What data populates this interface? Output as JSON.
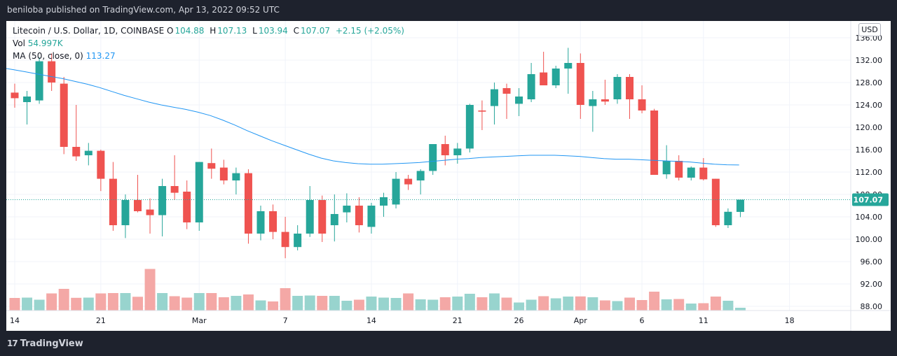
{
  "header": {
    "published": "beniloba published on TradingView.com, Apr 13, 2022 09:52 UTC"
  },
  "legend": {
    "symbol": "Litecoin / U.S. Dollar, 1D, COINBASE",
    "o_label": "O",
    "o_value": "104.88",
    "h_label": "H",
    "h_value": "107.13",
    "l_label": "L",
    "l_value": "103.94",
    "c_label": "C",
    "c_value": "107.07",
    "change": "+2.15 (+2.05%)",
    "vol_label": "Vol",
    "vol_value": "54.997K",
    "ma_label": "MA (50, close, 0)",
    "ma_value": "113.27"
  },
  "currency": "USD",
  "footer": {
    "brand": "TradingView"
  },
  "colors": {
    "up": "#26a69a",
    "down": "#ef5350",
    "vol_up": "#98d4ce",
    "vol_down": "#f4a8a6",
    "ma": "#2196f3",
    "background": "#ffffff",
    "frame": "#1e222d"
  },
  "chart_data": {
    "type": "candlestick",
    "title": "Litecoin / U.S. Dollar, 1D, COINBASE",
    "last_price": 107.07,
    "ylim": [
      86.5,
      137.5
    ],
    "y_ticks": [
      "88.00",
      "92.00",
      "96.00",
      "100.00",
      "104.00",
      "108.00",
      "112.00",
      "116.00",
      "120.00",
      "124.00",
      "128.00",
      "132.00",
      "136.00"
    ],
    "x_ticks": [
      {
        "label": "14",
        "index": 0
      },
      {
        "label": "21",
        "index": 7
      },
      {
        "label": "Mar",
        "index": 15
      },
      {
        "label": "7",
        "index": 22
      },
      {
        "label": "14",
        "index": 29
      },
      {
        "label": "21",
        "index": 36
      },
      {
        "label": "26",
        "index": 41
      },
      {
        "label": "Apr",
        "index": 46
      },
      {
        "label": "6",
        "index": 51
      },
      {
        "label": "11",
        "index": 56
      },
      {
        "label": "18",
        "index": 63
      }
    ],
    "candles": [
      {
        "o": 126.2,
        "h": 127.8,
        "l": 123.5,
        "c": 125.2
      },
      {
        "o": 124.5,
        "h": 126.5,
        "l": 120.5,
        "c": 125.5
      },
      {
        "o": 124.8,
        "h": 132.5,
        "l": 124.2,
        "c": 131.8
      },
      {
        "o": 131.8,
        "h": 133.2,
        "l": 126.5,
        "c": 128.0
      },
      {
        "o": 127.8,
        "h": 129.0,
        "l": 115.2,
        "c": 116.5
      },
      {
        "o": 116.5,
        "h": 124.0,
        "l": 114.0,
        "c": 114.8
      },
      {
        "o": 115.0,
        "h": 117.2,
        "l": 113.2,
        "c": 115.8
      },
      {
        "o": 115.8,
        "h": 116.0,
        "l": 108.6,
        "c": 110.8
      },
      {
        "o": 110.8,
        "h": 113.8,
        "l": 101.5,
        "c": 102.5
      },
      {
        "o": 102.5,
        "h": 108.0,
        "l": 100.2,
        "c": 107.0
      },
      {
        "o": 107.0,
        "h": 111.5,
        "l": 104.8,
        "c": 105.0
      },
      {
        "o": 105.3,
        "h": 107.3,
        "l": 101.0,
        "c": 104.3
      },
      {
        "o": 104.3,
        "h": 110.8,
        "l": 100.5,
        "c": 109.5
      },
      {
        "o": 109.5,
        "h": 115.0,
        "l": 107.0,
        "c": 108.3
      },
      {
        "o": 108.5,
        "h": 110.5,
        "l": 101.8,
        "c": 103.0
      },
      {
        "o": 103.0,
        "h": 113.8,
        "l": 101.5,
        "c": 113.8
      },
      {
        "o": 113.6,
        "h": 116.2,
        "l": 110.8,
        "c": 112.6
      },
      {
        "o": 112.8,
        "h": 114.2,
        "l": 109.8,
        "c": 110.5
      },
      {
        "o": 110.5,
        "h": 112.8,
        "l": 108.0,
        "c": 111.8
      },
      {
        "o": 111.8,
        "h": 112.5,
        "l": 99.2,
        "c": 101.0
      },
      {
        "o": 101.0,
        "h": 106.0,
        "l": 99.8,
        "c": 105.0
      },
      {
        "o": 105.0,
        "h": 106.2,
        "l": 100.0,
        "c": 101.3
      },
      {
        "o": 101.3,
        "h": 104.0,
        "l": 96.6,
        "c": 98.6
      },
      {
        "o": 98.6,
        "h": 102.5,
        "l": 98.0,
        "c": 101.0
      },
      {
        "o": 101.0,
        "h": 109.5,
        "l": 100.4,
        "c": 107.0
      },
      {
        "o": 107.0,
        "h": 107.8,
        "l": 99.5,
        "c": 101.0
      },
      {
        "o": 102.5,
        "h": 108.0,
        "l": 99.6,
        "c": 104.5
      },
      {
        "o": 104.8,
        "h": 108.2,
        "l": 103.0,
        "c": 106.0
      },
      {
        "o": 106.0,
        "h": 107.5,
        "l": 101.2,
        "c": 102.5
      },
      {
        "o": 102.2,
        "h": 106.5,
        "l": 101.0,
        "c": 106.0
      },
      {
        "o": 106.0,
        "h": 108.3,
        "l": 104.0,
        "c": 107.5
      },
      {
        "o": 106.2,
        "h": 112.0,
        "l": 105.5,
        "c": 110.8
      },
      {
        "o": 110.8,
        "h": 111.5,
        "l": 108.8,
        "c": 109.8
      },
      {
        "o": 110.5,
        "h": 112.5,
        "l": 108.0,
        "c": 112.2
      },
      {
        "o": 112.2,
        "h": 117.0,
        "l": 111.5,
        "c": 117.0
      },
      {
        "o": 117.0,
        "h": 118.5,
        "l": 113.2,
        "c": 115.0
      },
      {
        "o": 115.0,
        "h": 117.2,
        "l": 113.5,
        "c": 116.2
      },
      {
        "o": 116.2,
        "h": 124.2,
        "l": 115.5,
        "c": 124.0
      },
      {
        "o": 123.0,
        "h": 124.8,
        "l": 119.5,
        "c": 122.8
      },
      {
        "o": 123.8,
        "h": 128.0,
        "l": 120.5,
        "c": 126.8
      },
      {
        "o": 127.0,
        "h": 127.8,
        "l": 121.5,
        "c": 126.0
      },
      {
        "o": 124.2,
        "h": 127.0,
        "l": 122.0,
        "c": 125.5
      },
      {
        "o": 125.0,
        "h": 131.5,
        "l": 124.5,
        "c": 129.5
      },
      {
        "o": 129.8,
        "h": 133.5,
        "l": 127.5,
        "c": 127.5
      },
      {
        "o": 127.5,
        "h": 131.0,
        "l": 127.0,
        "c": 130.5
      },
      {
        "o": 130.5,
        "h": 134.2,
        "l": 126.0,
        "c": 131.5
      },
      {
        "o": 131.5,
        "h": 133.2,
        "l": 121.5,
        "c": 124.0
      },
      {
        "o": 123.8,
        "h": 126.5,
        "l": 119.2,
        "c": 125.0
      },
      {
        "o": 125.0,
        "h": 128.5,
        "l": 124.0,
        "c": 124.6
      },
      {
        "o": 125.0,
        "h": 129.5,
        "l": 124.2,
        "c": 129.0
      },
      {
        "o": 129.0,
        "h": 129.5,
        "l": 121.5,
        "c": 125.0
      },
      {
        "o": 125.0,
        "h": 127.5,
        "l": 122.5,
        "c": 123.0
      },
      {
        "o": 123.0,
        "h": 123.3,
        "l": 111.5,
        "c": 111.5
      },
      {
        "o": 111.6,
        "h": 116.8,
        "l": 110.8,
        "c": 114.0
      },
      {
        "o": 114.0,
        "h": 115.0,
        "l": 110.5,
        "c": 111.0
      },
      {
        "o": 111.0,
        "h": 113.0,
        "l": 110.5,
        "c": 112.8
      },
      {
        "o": 112.8,
        "h": 114.5,
        "l": 110.5,
        "c": 110.7
      },
      {
        "o": 110.8,
        "h": 110.8,
        "l": 102.2,
        "c": 102.5
      },
      {
        "o": 102.5,
        "h": 105.5,
        "l": 102.0,
        "c": 104.9
      },
      {
        "o": 104.88,
        "h": 107.13,
        "l": 103.94,
        "c": 107.07
      }
    ],
    "volume": [
      1.8,
      1.85,
      1.55,
      2.45,
      3.1,
      1.82,
      1.85,
      2.45,
      2.5,
      2.5,
      1.97,
      5.95,
      2.5,
      2.05,
      1.85,
      2.5,
      2.5,
      1.9,
      2.1,
      2.3,
      1.45,
      1.3,
      3.2,
      2.1,
      2.15,
      2.1,
      2.1,
      1.4,
      1.55,
      2.0,
      1.85,
      1.8,
      2.45,
      1.6,
      1.55,
      1.9,
      2.0,
      2.4,
      1.9,
      2.45,
      1.85,
      1.15,
      1.55,
      2.05,
      1.75,
      2.0,
      2.02,
      1.9,
      1.45,
      1.35,
      1.85,
      1.5,
      2.7,
      1.6,
      1.65,
      1.0,
      1.05,
      2.0,
      1.4,
      0.4
    ],
    "ma50": [
      130.3,
      129.9,
      129.5,
      129.1,
      128.7,
      128.2,
      127.7,
      127.1,
      126.4,
      125.7,
      125.1,
      124.5,
      124.0,
      123.6,
      123.2,
      122.7,
      122.1,
      121.3,
      120.4,
      119.4,
      118.5,
      117.6,
      116.8,
      116.0,
      115.2,
      114.5,
      114.0,
      113.7,
      113.5,
      113.4,
      113.4,
      113.5,
      113.6,
      113.7,
      113.9,
      114.1,
      114.3,
      114.4,
      114.6,
      114.7,
      114.8,
      114.9,
      115.0,
      115.0,
      115.0,
      114.9,
      114.8,
      114.6,
      114.4,
      114.3,
      114.3,
      114.2,
      114.1,
      114.0,
      113.9,
      113.8,
      113.6,
      113.4,
      113.3,
      113.27
    ]
  }
}
